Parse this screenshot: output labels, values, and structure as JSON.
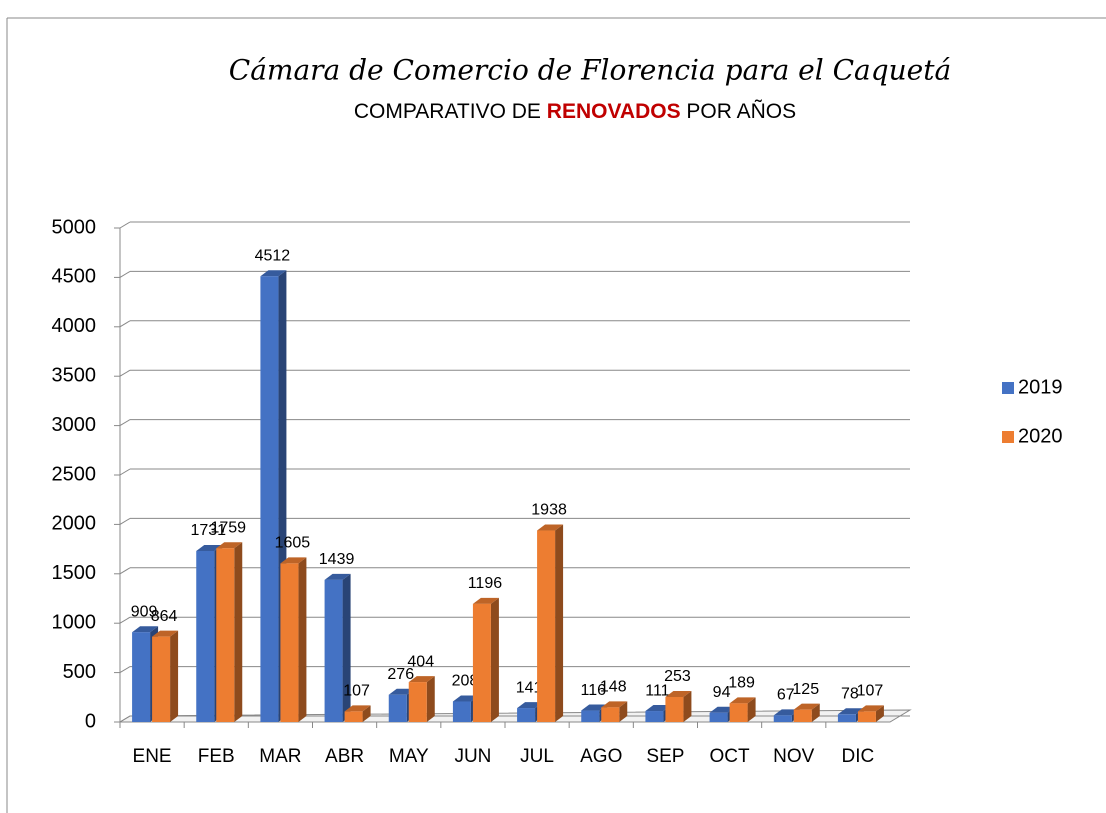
{
  "chart_data": {
    "type": "bar3d",
    "title": "Cámara de Comercio de Florencia para el Caquetá",
    "subtitle": [
      "COMPARATIVO DE",
      "RENOVADOS",
      "POR AÑOS"
    ],
    "categories": [
      "ENE",
      "FEB",
      "MAR",
      "ABR",
      "MAY",
      "JUN",
      "JUL",
      "AGO",
      "SEP",
      "OCT",
      "NOV",
      "DIC"
    ],
    "series": [
      {
        "name": "2019",
        "color": "#4472c4",
        "values": [
          909,
          1731,
          4512,
          1439,
          276,
          208,
          141,
          116,
          111,
          94,
          67,
          78
        ]
      },
      {
        "name": "2020",
        "color": "#ed7d31",
        "values": [
          864,
          1759,
          1605,
          107,
          404,
          1196,
          1938,
          148,
          253,
          189,
          125,
          107
        ]
      }
    ],
    "ylim": [
      0,
      5000
    ],
    "yticks": [
      0,
      500,
      1000,
      1500,
      2000,
      2500,
      3000,
      3500,
      4000,
      4500,
      5000
    ],
    "grid": true,
    "legend": "right"
  }
}
